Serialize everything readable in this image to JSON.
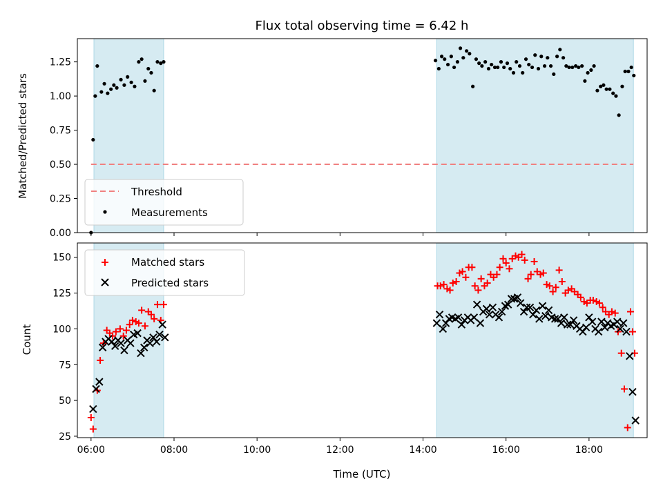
{
  "chart_data": [
    {
      "type": "scatter",
      "title": "Flux total observing time = 6.42 h",
      "xlabel": "",
      "ylabel": "Matched/Predicted stars",
      "ylim": [
        0,
        1.42
      ],
      "yticks": [
        "0.00",
        "0.25",
        "0.50",
        "0.75",
        "1.00",
        "1.25"
      ],
      "ytick_values": [
        0,
        0.25,
        0.5,
        0.75,
        1.0,
        1.25
      ],
      "threshold": {
        "name": "Threshold",
        "value": 0.5,
        "color": "#f08080"
      },
      "legend": {
        "position": "lower-left",
        "entries": [
          "Threshold",
          "Measurements"
        ]
      },
      "series": [
        {
          "name": "Measurements",
          "marker": "dot",
          "color": "#000000",
          "x": [
            6.0,
            6.05,
            6.1,
            6.15,
            6.25,
            6.32,
            6.4,
            6.48,
            6.55,
            6.62,
            6.72,
            6.8,
            6.88,
            6.97,
            7.05,
            7.15,
            7.22,
            7.3,
            7.38,
            7.45,
            7.52,
            7.6,
            7.68,
            7.75,
            14.3,
            14.38,
            14.45,
            14.52,
            14.6,
            14.68,
            14.75,
            14.83,
            14.9,
            14.97,
            15.05,
            15.12,
            15.2,
            15.28,
            15.35,
            15.42,
            15.5,
            15.58,
            15.65,
            15.73,
            15.8,
            15.88,
            15.95,
            16.03,
            16.1,
            16.18,
            16.25,
            16.33,
            16.4,
            16.48,
            16.55,
            16.63,
            16.7,
            16.78,
            16.85,
            16.93,
            17.0,
            17.08,
            17.15,
            17.23,
            17.3,
            17.38,
            17.45,
            17.52,
            17.6,
            17.68,
            17.75,
            17.83,
            17.9,
            17.97,
            18.05,
            18.12,
            18.2,
            18.28,
            18.35,
            18.42,
            18.5,
            18.58,
            18.65,
            18.72,
            18.8,
            18.87,
            18.95,
            19.02,
            19.08
          ],
          "y": [
            0.0,
            0.68,
            1.0,
            1.22,
            1.03,
            1.09,
            1.02,
            1.05,
            1.08,
            1.06,
            1.12,
            1.08,
            1.14,
            1.1,
            1.07,
            1.25,
            1.27,
            1.11,
            1.2,
            1.17,
            1.04,
            1.25,
            1.24,
            1.25,
            1.26,
            1.2,
            1.29,
            1.27,
            1.23,
            1.29,
            1.21,
            1.25,
            1.35,
            1.28,
            1.33,
            1.31,
            1.07,
            1.27,
            1.24,
            1.22,
            1.25,
            1.2,
            1.23,
            1.21,
            1.21,
            1.25,
            1.21,
            1.24,
            1.2,
            1.17,
            1.25,
            1.22,
            1.17,
            1.27,
            1.23,
            1.21,
            1.3,
            1.2,
            1.29,
            1.22,
            1.28,
            1.22,
            1.16,
            1.29,
            1.34,
            1.28,
            1.22,
            1.21,
            1.21,
            1.22,
            1.21,
            1.22,
            1.11,
            1.17,
            1.19,
            1.22,
            1.04,
            1.07,
            1.08,
            1.05,
            1.05,
            1.02,
            1.0,
            0.86,
            1.07,
            1.18,
            1.18,
            1.21,
            1.15
          ]
        }
      ]
    },
    {
      "type": "scatter",
      "xlabel": "Time (UTC)",
      "ylabel": "Count",
      "ylim": [
        24,
        160
      ],
      "yticks": [
        "25",
        "50",
        "75",
        "100",
        "125",
        "150"
      ],
      "ytick_values": [
        25,
        50,
        75,
        100,
        125,
        150
      ],
      "xticks": [
        "06:00",
        "08:00",
        "10:00",
        "12:00",
        "14:00",
        "16:00",
        "18:00"
      ],
      "xtick_values": [
        6,
        8,
        10,
        12,
        14,
        16,
        18
      ],
      "xlim": [
        5.67,
        19.4
      ],
      "shaded_intervals": [
        [
          6.07,
          7.75
        ],
        [
          14.33,
          19.07
        ]
      ],
      "shade_color": "#add8e6",
      "legend": {
        "position": "top-left",
        "entries": [
          "Matched stars",
          "Predicted stars"
        ]
      },
      "series": [
        {
          "name": "Matched stars",
          "marker": "plus",
          "color": "#ff0000",
          "x": [
            6.0,
            6.05,
            6.15,
            6.22,
            6.3,
            6.38,
            6.45,
            6.52,
            6.6,
            6.7,
            6.78,
            6.85,
            6.93,
            7.0,
            7.08,
            7.15,
            7.22,
            7.3,
            7.38,
            7.45,
            7.52,
            7.6,
            7.68,
            7.75,
            14.35,
            14.42,
            14.5,
            14.58,
            14.65,
            14.72,
            14.8,
            14.88,
            14.95,
            15.03,
            15.1,
            15.18,
            15.25,
            15.33,
            15.4,
            15.48,
            15.55,
            15.63,
            15.7,
            15.78,
            15.85,
            15.93,
            16.0,
            16.08,
            16.15,
            16.23,
            16.3,
            16.38,
            16.45,
            16.53,
            16.6,
            16.68,
            16.75,
            16.83,
            16.9,
            16.98,
            17.05,
            17.13,
            17.2,
            17.28,
            17.35,
            17.43,
            17.5,
            17.58,
            17.65,
            17.73,
            17.8,
            17.88,
            17.95,
            18.03,
            18.1,
            18.18,
            18.25,
            18.33,
            18.4,
            18.48,
            18.55,
            18.63,
            18.7,
            18.78,
            18.85,
            18.93,
            19.0,
            19.05,
            19.1
          ],
          "y": [
            38,
            30,
            57,
            78,
            90,
            99,
            97,
            95,
            98,
            100,
            95,
            99,
            103,
            106,
            105,
            104,
            113,
            102,
            112,
            110,
            107,
            117,
            106,
            117,
            130,
            130,
            131,
            128,
            127,
            132,
            133,
            139,
            140,
            136,
            143,
            143,
            130,
            127,
            135,
            130,
            132,
            138,
            136,
            138,
            143,
            149,
            146,
            142,
            149,
            151,
            150,
            152,
            148,
            135,
            138,
            147,
            140,
            138,
            139,
            131,
            130,
            126,
            129,
            141,
            133,
            125,
            127,
            128,
            126,
            124,
            122,
            119,
            118,
            120,
            120,
            119,
            118,
            115,
            112,
            110,
            112,
            111,
            98,
            83,
            58,
            31,
            112,
            98,
            83
          ],
          "y_note": ""
        },
        {
          "name": "Predicted stars",
          "marker": "x",
          "color": "#000000",
          "x": [
            6.05,
            6.12,
            6.2,
            6.28,
            6.35,
            6.42,
            6.5,
            6.58,
            6.65,
            6.72,
            6.8,
            6.88,
            6.95,
            7.03,
            7.12,
            7.2,
            7.28,
            7.35,
            7.42,
            7.5,
            7.58,
            7.65,
            7.72,
            7.78,
            14.33,
            14.4,
            14.48,
            14.55,
            14.63,
            14.7,
            14.78,
            14.85,
            14.93,
            15.0,
            15.08,
            15.15,
            15.23,
            15.3,
            15.38,
            15.45,
            15.53,
            15.6,
            15.68,
            15.75,
            15.83,
            15.9,
            15.98,
            16.05,
            16.13,
            16.2,
            16.28,
            16.35,
            16.43,
            16.5,
            16.58,
            16.65,
            16.73,
            16.8,
            16.88,
            16.95,
            17.03,
            17.1,
            17.18,
            17.25,
            17.33,
            17.4,
            17.48,
            17.55,
            17.63,
            17.7,
            17.78,
            17.85,
            17.93,
            18.0,
            18.08,
            18.15,
            18.23,
            18.3,
            18.38,
            18.45,
            18.53,
            18.6,
            18.68,
            18.75,
            18.83,
            18.9,
            18.98,
            19.05,
            19.12
          ],
          "y": [
            44,
            58,
            63,
            87,
            91,
            93,
            91,
            88,
            92,
            90,
            85,
            92,
            90,
            96,
            97,
            83,
            87,
            92,
            90,
            94,
            91,
            96,
            103,
            94,
            104,
            110,
            100,
            104,
            107,
            108,
            107,
            108,
            103,
            106,
            108,
            106,
            108,
            117,
            104,
            112,
            114,
            110,
            115,
            110,
            108,
            112,
            116,
            117,
            121,
            121,
            122,
            118,
            112,
            115,
            115,
            110,
            113,
            107,
            116,
            109,
            113,
            108,
            107,
            107,
            104,
            108,
            103,
            103,
            106,
            102,
            100,
            98,
            101,
            108,
            105,
            100,
            98,
            105,
            101,
            104,
            102,
            103,
            105,
            100,
            104,
            98,
            81,
            56,
            36
          ]
        }
      ]
    }
  ]
}
